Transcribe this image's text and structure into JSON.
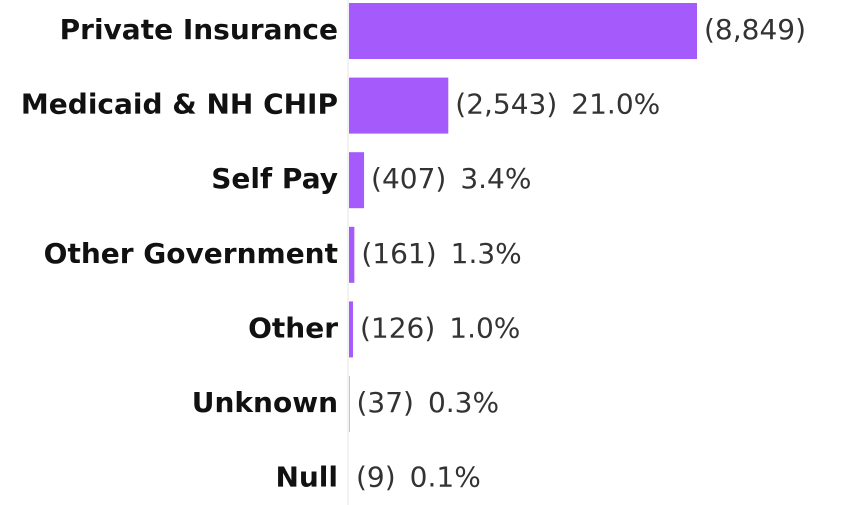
{
  "chart_data": {
    "type": "bar",
    "orientation": "horizontal",
    "categories": [
      "Private Insurance",
      "Medicaid & NH CHIP",
      "Self Pay",
      "Other Government",
      "Other",
      "Unknown",
      "Null"
    ],
    "values": [
      8849,
      2543,
      407,
      161,
      126,
      37,
      9
    ],
    "value_labels": [
      "(8,849)",
      "(2,543)",
      "(407)",
      "(161)",
      "(126)",
      "(37)",
      "(9)"
    ],
    "percentages": [
      null,
      21.0,
      3.4,
      1.3,
      1.0,
      0.3,
      0.1
    ],
    "percentage_labels": [
      null,
      "21.0%",
      "3.4%",
      "1.3%",
      "1.0%",
      "0.3%",
      "0.1%"
    ],
    "color": "#a55afc"
  }
}
